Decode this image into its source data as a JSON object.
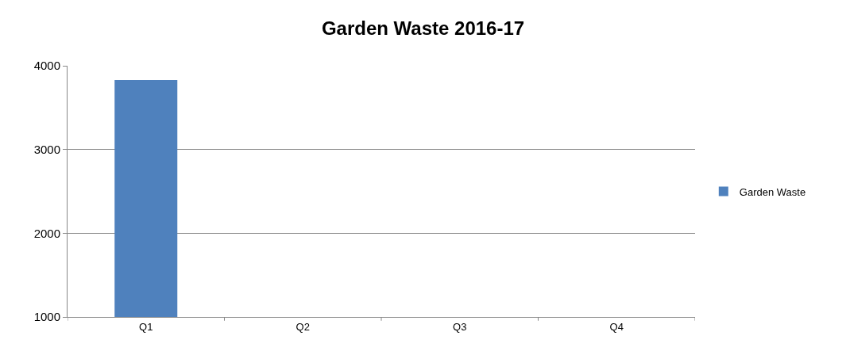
{
  "chart_data": {
    "type": "bar",
    "title": "Garden Waste 2016-17",
    "categories": [
      "Q1",
      "Q2",
      "Q3",
      "Q4"
    ],
    "series": [
      {
        "name": "Garden Waste",
        "color": "#4f81bd",
        "values": [
          3830,
          null,
          null,
          null
        ]
      }
    ],
    "ylim": [
      1000,
      4000
    ],
    "yticks": [
      1000,
      2000,
      3000,
      4000
    ],
    "grid": "y",
    "legend": "right"
  }
}
